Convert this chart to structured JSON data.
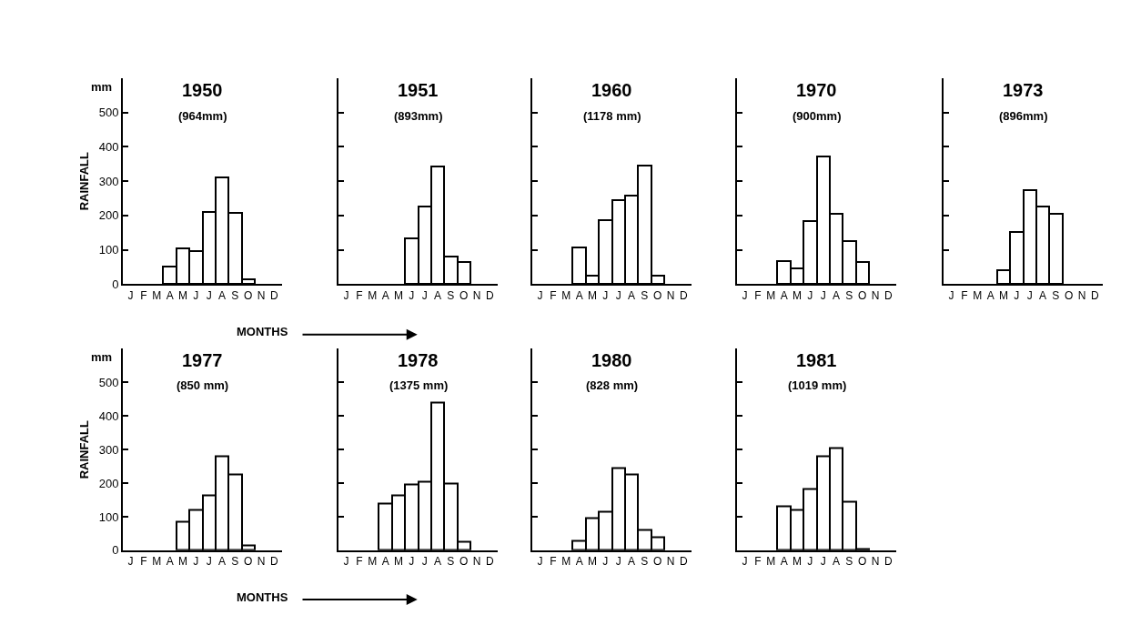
{
  "chart_data": [
    {
      "type": "bar",
      "title": "1950",
      "subtitle": "(964mm)",
      "ylabel": "RAINFALL",
      "annotations": [
        "mm"
      ],
      "xlabel": "MONTHS",
      "categories": [
        "J",
        "F",
        "M",
        "A",
        "M",
        "J",
        "J",
        "A",
        "S",
        "O",
        "N",
        "D"
      ],
      "values": [
        null,
        null,
        null,
        51,
        103,
        97,
        209,
        310,
        208,
        15,
        null,
        null
      ],
      "color": "#ffffff",
      "ylim": [
        0,
        600
      ],
      "yticks": [
        0,
        100,
        200,
        300,
        400,
        500
      ]
    },
    {
      "type": "bar",
      "title": "1951",
      "subtitle": "(893mm)",
      "categories": [
        "J",
        "F",
        "M",
        "A",
        "M",
        "J",
        "J",
        "A",
        "S",
        "O",
        "N",
        "D"
      ],
      "values": [
        null,
        null,
        null,
        null,
        null,
        133,
        227,
        343,
        80,
        65,
        null,
        null
      ],
      "color": "#ffffff",
      "ylim": [
        0,
        600
      ],
      "yticks": [
        {
          "value": 0,
          "label": null
        },
        {
          "value": 100,
          "label": null
        },
        {
          "value": 200,
          "label": null
        },
        {
          "value": 300,
          "label": null
        },
        {
          "value": 400,
          "label": null
        },
        {
          "value": 500,
          "label": null
        }
      ],
      "tick_labels": "x"
    },
    {
      "type": "bar",
      "title": "1960",
      "subtitle": "(1178 mm)",
      "categories": [
        "J",
        "F",
        "M",
        "A",
        "M",
        "J",
        "J",
        "A",
        "S",
        "O",
        "N",
        "D"
      ],
      "values": [
        null,
        null,
        null,
        107,
        25,
        187,
        246,
        259,
        346,
        25,
        null,
        null
      ],
      "color": "#ffffff",
      "ylim": [
        0,
        600
      ],
      "yticks": [
        {
          "value": 0,
          "label": null
        },
        {
          "value": 100,
          "label": null
        },
        {
          "value": 200,
          "label": null
        },
        {
          "value": 300,
          "label": null
        },
        {
          "value": 400,
          "label": null
        },
        {
          "value": 500,
          "label": null
        }
      ],
      "tick_labels": "x"
    },
    {
      "type": "bar",
      "title": "1970",
      "subtitle": "(900mm)",
      "categories": [
        "J",
        "F",
        "M",
        "A",
        "M",
        "J",
        "J",
        "A",
        "S",
        "O",
        "N",
        "D"
      ],
      "values": [
        null,
        null,
        null,
        68,
        45,
        183,
        372,
        204,
        126,
        65,
        null,
        null
      ],
      "color": "#ffffff",
      "ylim": [
        0,
        600
      ],
      "yticks": [
        {
          "value": 0,
          "label": null
        },
        {
          "value": 100,
          "label": null
        },
        {
          "value": 200,
          "label": null
        },
        {
          "value": 300,
          "label": null
        },
        {
          "value": 400,
          "label": null
        },
        {
          "value": 500,
          "label": null
        }
      ],
      "tick_labels": "x"
    },
    {
      "type": "bar",
      "title": "1973",
      "subtitle": "(896mm)",
      "categories": [
        "J",
        "F",
        "M",
        "A",
        "M",
        "J",
        "J",
        "A",
        "S",
        "O",
        "N",
        "D"
      ],
      "values": [
        null,
        null,
        null,
        null,
        40,
        153,
        274,
        225,
        204,
        null,
        null,
        null
      ],
      "color": "#ffffff",
      "ylim": [
        0,
        600
      ],
      "yticks": [
        {
          "value": 0,
          "label": null
        },
        {
          "value": 100,
          "label": null
        },
        {
          "value": 200,
          "label": null
        },
        {
          "value": 300,
          "label": null
        },
        {
          "value": 400,
          "label": null
        },
        {
          "value": 500,
          "label": null
        }
      ],
      "tick_labels": "x"
    },
    {
      "type": "bar",
      "title": "1977",
      "subtitle": "(850 mm)",
      "ylabel": "RAINFALL",
      "annotations": [
        "mm"
      ],
      "xlabel": "MONTHS",
      "categories": [
        "J",
        "F",
        "M",
        "A",
        "M",
        "J",
        "J",
        "A",
        "S",
        "O",
        "N",
        "D"
      ],
      "values": [
        null,
        null,
        null,
        null,
        85,
        120,
        165,
        280,
        225,
        15,
        null,
        null
      ],
      "color": "#ffffff",
      "ylim": [
        0,
        600
      ],
      "yticks": [
        0,
        100,
        200,
        300,
        400,
        500
      ]
    },
    {
      "type": "bar",
      "title": "1978",
      "subtitle": "(1375 mm)",
      "categories": [
        "J",
        "F",
        "M",
        "A",
        "M",
        "J",
        "J",
        "A",
        "S",
        "O",
        "N",
        "D"
      ],
      "values": [
        null,
        null,
        null,
        140,
        165,
        195,
        205,
        440,
        200,
        25,
        null,
        null
      ],
      "color": "#ffffff",
      "ylim": [
        0,
        600
      ],
      "yticks": [
        {
          "value": 0,
          "label": null
        },
        {
          "value": 100,
          "label": null
        },
        {
          "value": 200,
          "label": null
        },
        {
          "value": 300,
          "label": null
        },
        {
          "value": 400,
          "label": null
        },
        {
          "value": 500,
          "label": null
        }
      ],
      "tick_labels": "x"
    },
    {
      "type": "bar",
      "title": "1980",
      "subtitle": "(828 mm)",
      "categories": [
        "J",
        "F",
        "M",
        "A",
        "M",
        "J",
        "J",
        "A",
        "S",
        "O",
        "N",
        "D"
      ],
      "values": [
        null,
        null,
        null,
        28,
        95,
        115,
        245,
        225,
        60,
        40,
        null,
        null
      ],
      "color": "#ffffff",
      "ylim": [
        0,
        600
      ],
      "yticks": [
        {
          "value": 0,
          "label": null
        },
        {
          "value": 100,
          "label": null
        },
        {
          "value": 200,
          "label": null
        },
        {
          "value": 300,
          "label": null
        },
        {
          "value": 400,
          "label": null
        },
        {
          "value": 500,
          "label": null
        }
      ],
      "tick_labels": "x"
    },
    {
      "type": "bar",
      "title": "1981",
      "subtitle": "(1019 mm)",
      "categories": [
        "J",
        "F",
        "M",
        "A",
        "M",
        "J",
        "J",
        "A",
        "S",
        "O",
        "N",
        "D"
      ],
      "values": [
        null,
        null,
        null,
        130,
        120,
        183,
        281,
        305,
        145,
        3,
        null,
        null
      ],
      "color": "#ffffff",
      "ylim": [
        0,
        600
      ],
      "yticks": [
        {
          "value": 0,
          "label": null
        },
        {
          "value": 100,
          "label": null
        },
        {
          "value": 200,
          "label": null
        },
        {
          "value": 300,
          "label": null
        },
        {
          "value": 400,
          "label": null
        },
        {
          "value": 500,
          "label": null
        }
      ],
      "tick_labels": "x"
    }
  ]
}
